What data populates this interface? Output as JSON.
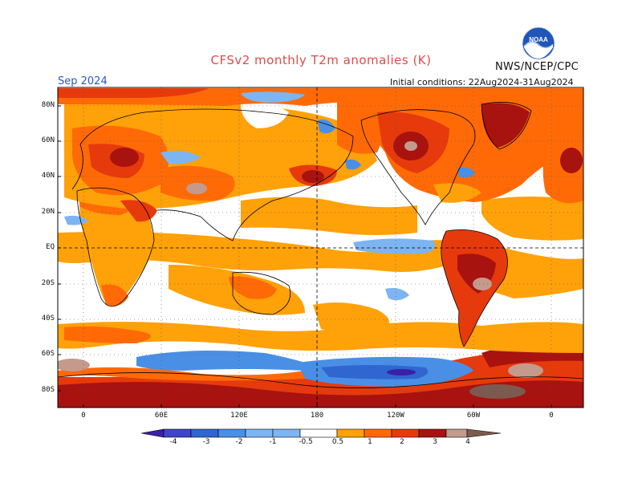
{
  "header": {
    "title": "CFSv2 monthly T2m anomalies (K)",
    "agency": "NWS/NCEP/CPC",
    "logo_text": "NOAA",
    "month": "Sep 2024",
    "initial_conditions": "Initial conditions: 22Aug2024-31Aug2024"
  },
  "map": {
    "lat_labels": [
      "80N",
      "60N",
      "40N",
      "20N",
      "EQ",
      "20S",
      "40S",
      "60S",
      "80S"
    ],
    "lon_labels": [
      "0",
      "60E",
      "120E",
      "180",
      "120W",
      "60W",
      "0"
    ]
  },
  "colorbar": {
    "labels": [
      "-4",
      "-3",
      "-2",
      "-1",
      "-0.5",
      "0.5",
      "1",
      "2",
      "3",
      "4"
    ],
    "colors": {
      "lt_neg4": "#3b1fa6",
      "neg4_3": "#3f44c9",
      "neg3_2": "#2f66cf",
      "neg2_1": "#4a8fe6",
      "neg1_05": "#7cb5f2",
      "neutral": "#ffffff",
      "p05_1": "#ffa108",
      "p1_2": "#ff6a07",
      "p2_3": "#e63a0c",
      "p3_4": "#a8120f",
      "p4_5": "#c49a8d",
      "gt5": "#7d5a4f"
    }
  }
}
